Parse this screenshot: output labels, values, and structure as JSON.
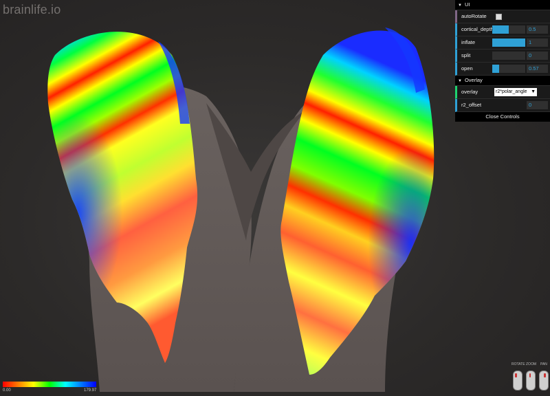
{
  "logo": "brainlife.io",
  "gui": {
    "ui_folder": "UI",
    "controls": [
      {
        "label": "autoRotate",
        "type": "bool",
        "checked": false
      },
      {
        "label": "cortical_depth",
        "type": "num",
        "value": "0.5",
        "fraction": 0.5
      },
      {
        "label": "inflate",
        "type": "num",
        "value": "1",
        "fraction": 1.0
      },
      {
        "label": "split",
        "type": "num",
        "value": "0",
        "fraction": 0.0
      },
      {
        "label": "open",
        "type": "num",
        "value": "0.57",
        "fraction": 0.2
      }
    ],
    "overlay_folder": "Overlay",
    "overlay": {
      "label": "overlay",
      "selected": "r2*polar_angle"
    },
    "r2_offset": {
      "label": "r2_offset",
      "value": "0"
    },
    "close_label": "Close Controls"
  },
  "colorbar": {
    "min": "0.00",
    "max": "179.97"
  },
  "mouse_hints": {
    "rotate": "ROTATE",
    "zoom": "ZOOM",
    "pan": "PAN"
  }
}
